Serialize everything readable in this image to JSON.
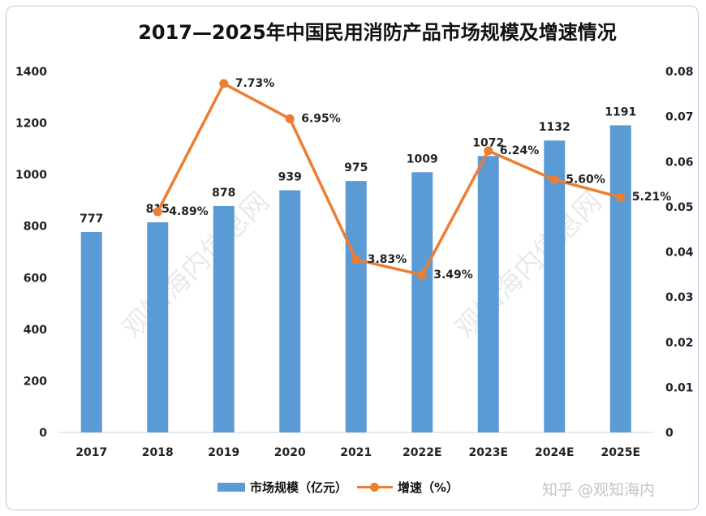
{
  "chart_data": {
    "type": "bar+line",
    "title": "2017—2025年中国民用消防产品市场规模及增速情况",
    "categories": [
      "2017",
      "2018",
      "2019",
      "2020",
      "2021",
      "2022E",
      "2023E",
      "2024E",
      "2025E"
    ],
    "series": [
      {
        "name": "市场规模（亿元）",
        "type": "bar",
        "axis": "left",
        "color": "#5b9bd5",
        "values": [
          777,
          815,
          878,
          939,
          975,
          1009,
          1072,
          1132,
          1191
        ],
        "labels": [
          "777",
          "815",
          "878",
          "939",
          "975",
          "1009",
          "1072",
          "1132",
          "1191"
        ]
      },
      {
        "name": "增速（%）",
        "type": "line",
        "axis": "right",
        "color": "#ed7d31",
        "values": [
          null,
          0.0489,
          0.0773,
          0.0695,
          0.0383,
          0.0349,
          0.0624,
          0.056,
          0.0521
        ],
        "labels": [
          "",
          "4.89%",
          "7.73%",
          "6.95%",
          "3.83%",
          "3.49%",
          "6.24%",
          "5.60%",
          "5.21%"
        ]
      }
    ],
    "yleft": {
      "lim": [
        0,
        1400
      ],
      "ticks": [
        "0",
        "200",
        "400",
        "600",
        "800",
        "1000",
        "1200",
        "1400"
      ]
    },
    "yright": {
      "lim": [
        0,
        0.08
      ],
      "ticks": [
        "0",
        "0.01",
        "0.02",
        "0.03",
        "0.04",
        "0.05",
        "0.06",
        "0.07",
        "0.08"
      ]
    },
    "grid": false,
    "legend": "bottom"
  },
  "credit": "知乎 @观知海内",
  "watermark": "观知海内信息网"
}
